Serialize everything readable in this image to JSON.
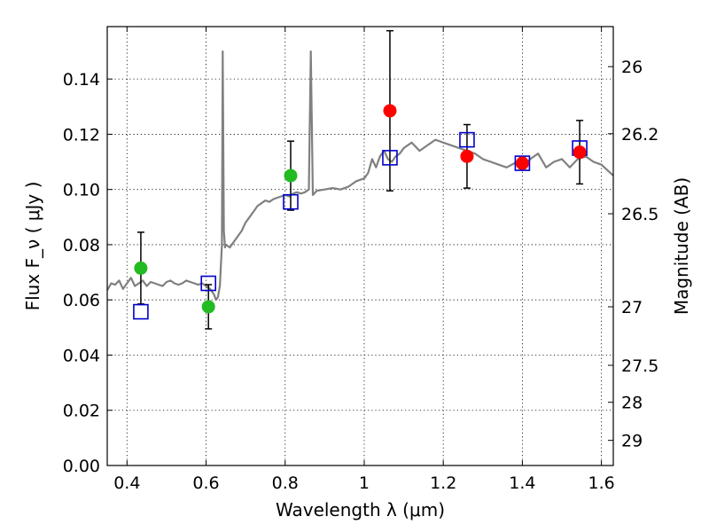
{
  "chart_data": {
    "type": "scatter",
    "xlabel": "Wavelength  λ (μm)",
    "ylabel": "Flux  F_ν  ( μJy )",
    "y2label": "Magnitude (AB)",
    "xlim": [
      0.35,
      1.63
    ],
    "ylim": [
      0.0,
      0.159
    ],
    "grid": true,
    "x_ticks": [
      0.4,
      0.6,
      0.8,
      1.0,
      1.2,
      1.4,
      1.6
    ],
    "x_tick_labels": [
      "0.4",
      "0.6",
      "0.8",
      "1",
      "1.2",
      "1.4",
      "1.6"
    ],
    "y_ticks": [
      0.0,
      0.02,
      0.04,
      0.06,
      0.08,
      0.1,
      0.12,
      0.14
    ],
    "y_tick_labels": [
      "0.00",
      "0.02",
      "0.04",
      "0.06",
      "0.08",
      "0.10",
      "0.12",
      "0.14"
    ],
    "y2_ticks": [
      {
        "label": "26",
        "flux": 0.1445
      },
      {
        "label": "26.2",
        "flux": 0.1202
      },
      {
        "label": "26.5",
        "flux": 0.0912
      },
      {
        "label": "27",
        "flux": 0.0575
      },
      {
        "label": "27.5",
        "flux": 0.0363
      },
      {
        "label": "28",
        "flux": 0.0229
      },
      {
        "label": "29",
        "flux": 0.0091
      }
    ],
    "series": [
      {
        "kind": "line",
        "color": "#808080",
        "x": [
          0.35,
          0.36,
          0.37,
          0.38,
          0.39,
          0.4,
          0.41,
          0.42,
          0.43,
          0.44,
          0.45,
          0.46,
          0.47,
          0.48,
          0.49,
          0.5,
          0.51,
          0.52,
          0.53,
          0.54,
          0.55,
          0.56,
          0.57,
          0.58,
          0.59,
          0.6,
          0.61,
          0.62,
          0.625,
          0.63,
          0.635,
          0.64,
          0.642,
          0.645,
          0.648,
          0.65,
          0.66,
          0.67,
          0.68,
          0.69,
          0.7,
          0.71,
          0.72,
          0.73,
          0.74,
          0.75,
          0.76,
          0.77,
          0.78,
          0.79,
          0.8,
          0.81,
          0.82,
          0.83,
          0.84,
          0.85,
          0.86,
          0.865,
          0.87,
          0.88,
          0.9,
          0.92,
          0.94,
          0.96,
          0.98,
          1.0,
          1.01,
          1.02,
          1.03,
          1.04,
          1.05,
          1.06,
          1.07,
          1.08,
          1.09,
          1.1,
          1.11,
          1.12,
          1.14,
          1.16,
          1.18,
          1.2,
          1.22,
          1.24,
          1.26,
          1.28,
          1.3,
          1.32,
          1.34,
          1.36,
          1.38,
          1.4,
          1.42,
          1.44,
          1.46,
          1.48,
          1.5,
          1.52,
          1.54,
          1.56,
          1.58,
          1.6,
          1.63
        ],
        "y": [
          0.0635,
          0.066,
          0.0655,
          0.067,
          0.064,
          0.066,
          0.068,
          0.065,
          0.066,
          0.067,
          0.065,
          0.0665,
          0.066,
          0.0655,
          0.065,
          0.0665,
          0.067,
          0.066,
          0.0655,
          0.066,
          0.067,
          0.0665,
          0.066,
          0.0655,
          0.066,
          0.065,
          0.064,
          0.062,
          0.06,
          0.061,
          0.065,
          0.08,
          0.15,
          0.085,
          0.079,
          0.08,
          0.079,
          0.081,
          0.083,
          0.085,
          0.088,
          0.09,
          0.092,
          0.094,
          0.095,
          0.096,
          0.0955,
          0.0965,
          0.097,
          0.0975,
          0.098,
          0.0975,
          0.0985,
          0.099,
          0.0985,
          0.099,
          0.1,
          0.15,
          0.098,
          0.0995,
          0.1,
          0.1005,
          0.1,
          0.101,
          0.103,
          0.104,
          0.106,
          0.111,
          0.108,
          0.112,
          0.114,
          0.111,
          0.11,
          0.112,
          0.113,
          0.115,
          0.116,
          0.117,
          0.114,
          0.116,
          0.118,
          0.117,
          0.116,
          0.115,
          0.114,
          0.113,
          0.111,
          0.11,
          0.109,
          0.108,
          0.1095,
          0.107,
          0.111,
          0.113,
          0.108,
          0.11,
          0.111,
          0.108,
          0.111,
          0.112,
          0.11,
          0.109,
          0.105
        ]
      },
      {
        "kind": "model_photometry",
        "marker": "open-square",
        "color": "#0000cc",
        "x": [
          0.435,
          0.606,
          0.814,
          1.065,
          1.26,
          1.4,
          1.545
        ],
        "y": [
          0.0557,
          0.066,
          0.0955,
          0.1115,
          0.118,
          0.1095,
          0.115
        ]
      },
      {
        "kind": "observed",
        "marker": "circle",
        "color": "#22bb22",
        "x": [
          0.435,
          0.606,
          0.814
        ],
        "y": [
          0.0715,
          0.0575,
          0.105
        ],
        "err": [
          0.013,
          0.008,
          0.0125
        ]
      },
      {
        "kind": "observed",
        "marker": "circle",
        "color": "#ff0000",
        "x": [
          1.065,
          1.26,
          1.4,
          1.545
        ],
        "y": [
          0.1285,
          0.112,
          0.1095,
          0.1135
        ],
        "err": [
          0.029,
          0.0115,
          0.002,
          0.0115
        ]
      }
    ]
  }
}
